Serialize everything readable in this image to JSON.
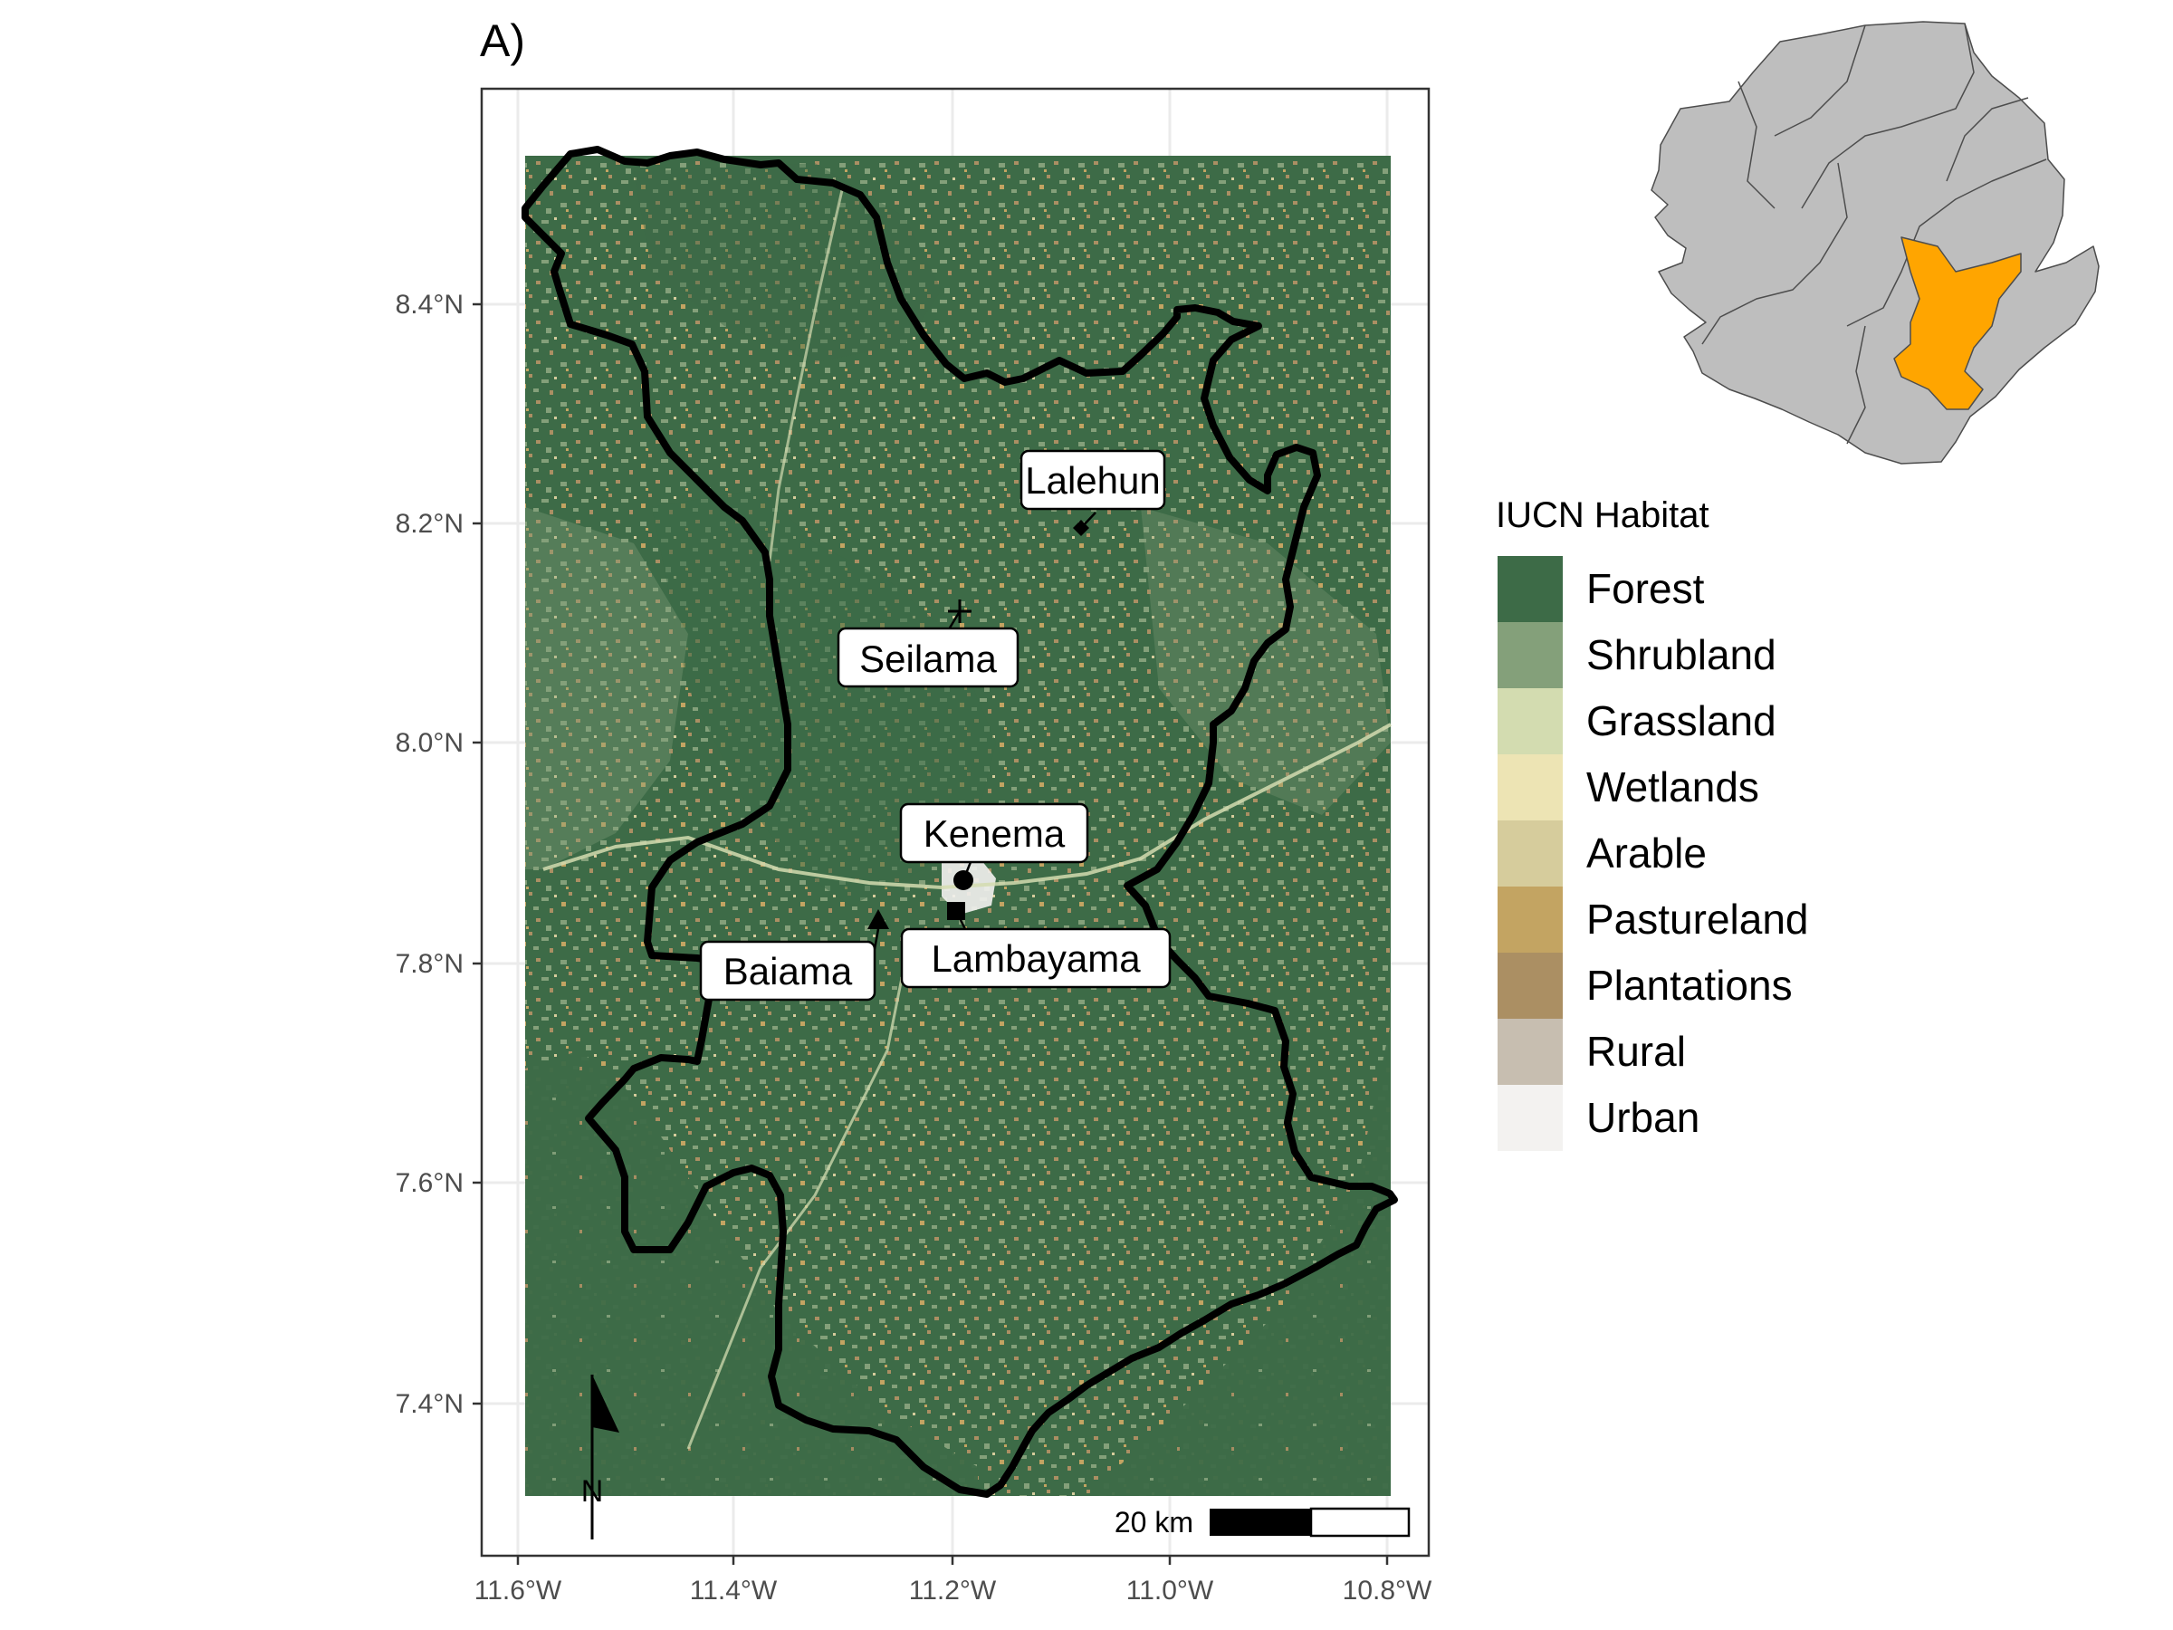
{
  "panel_label": "A)",
  "axes": {
    "x_ticks": [
      "11.6°W",
      "11.4°W",
      "11.2°W",
      "11.0°W",
      "10.8°W"
    ],
    "y_ticks": [
      "8.4°N",
      "8.2°N",
      "8.0°N",
      "7.8°N",
      "7.6°N",
      "7.4°N"
    ],
    "xlim": [
      -11.62,
      -10.78
    ],
    "ylim": [
      7.29,
      8.56
    ],
    "grid": true
  },
  "places": [
    {
      "name": "Lalehun",
      "lon": -11.08,
      "lat": 8.2,
      "marker": "diamond"
    },
    {
      "name": "Seilama",
      "lon": -11.19,
      "lat": 8.12,
      "marker": "cross"
    },
    {
      "name": "Kenema",
      "lon": -11.19,
      "lat": 7.88,
      "marker": "circle"
    },
    {
      "name": "Lambayama",
      "lon": -11.2,
      "lat": 7.85,
      "marker": "square"
    },
    {
      "name": "Baiama",
      "lon": -11.27,
      "lat": 7.84,
      "marker": "triangle"
    }
  ],
  "legend": {
    "title": "IUCN Habitat",
    "items": [
      {
        "label": "Forest",
        "color": "#3d6b47"
      },
      {
        "label": "Shrubland",
        "color": "#84a07a"
      },
      {
        "label": "Grassland",
        "color": "#d3dcb0"
      },
      {
        "label": "Wetlands",
        "color": "#ede4b4"
      },
      {
        "label": "Arable",
        "color": "#d6cc9c"
      },
      {
        "label": "Pastureland",
        "color": "#c3a462"
      },
      {
        "label": "Plantations",
        "color": "#ab8f63"
      },
      {
        "label": "Rural",
        "color": "#c7beb0"
      },
      {
        "label": "Urban",
        "color": "#f3f2f0"
      }
    ]
  },
  "scale_bar": {
    "label": "20 km"
  },
  "north_arrow": {
    "label": "N"
  },
  "inset": {
    "highlight_color": "#ffa500",
    "base_color": "#bebebe"
  }
}
